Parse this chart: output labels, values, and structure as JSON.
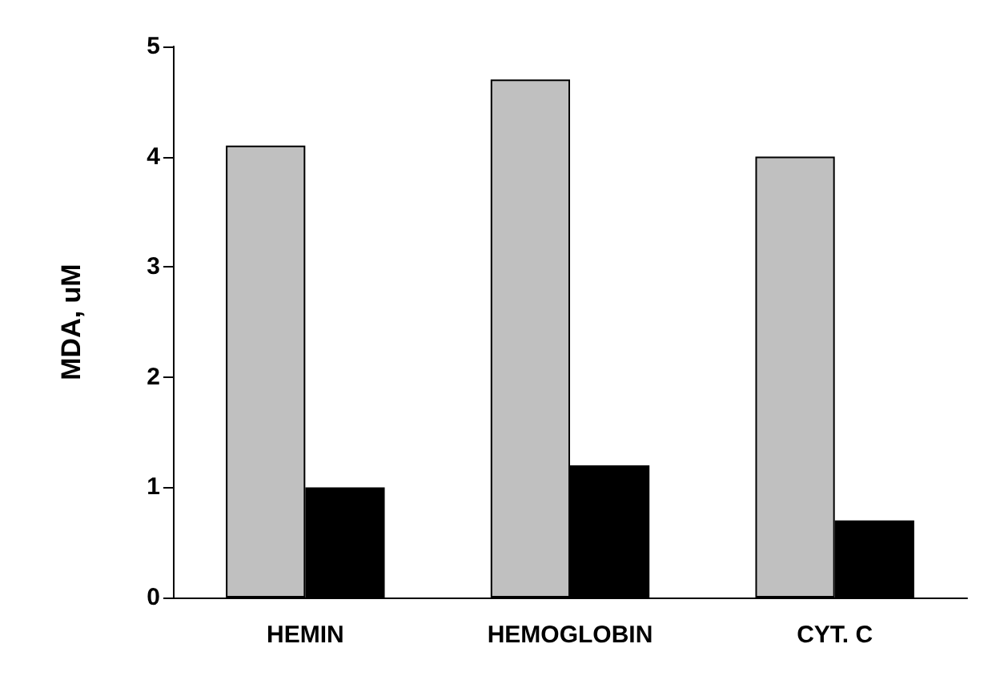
{
  "chart_data": {
    "type": "bar",
    "ylabel": "MDA, uM",
    "categories": [
      "HEMIN",
      "HEMOGLOBIN",
      "CYT. C"
    ],
    "series": [
      {
        "color": "#c0c0c0",
        "values": [
          4.1,
          4.7,
          4.0
        ]
      },
      {
        "color": "#000000",
        "values": [
          1.0,
          1.2,
          0.7
        ]
      }
    ],
    "ylim": [
      0,
      5
    ],
    "yticks": [
      0,
      1,
      2,
      3,
      4,
      5
    ],
    "grid": false
  }
}
